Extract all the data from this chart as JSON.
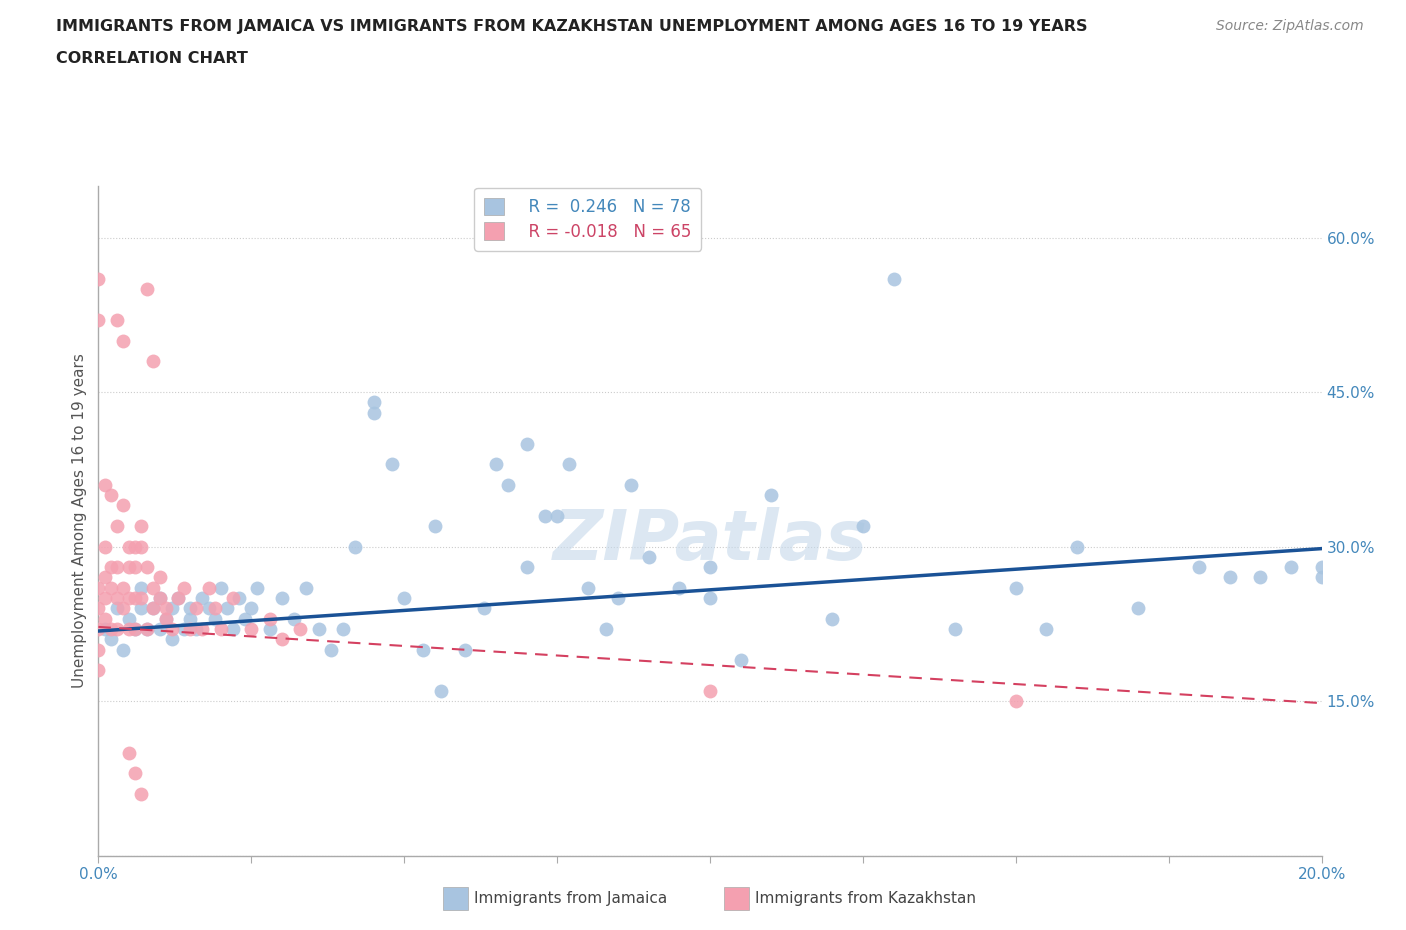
{
  "title_line1": "IMMIGRANTS FROM JAMAICA VS IMMIGRANTS FROM KAZAKHSTAN UNEMPLOYMENT AMONG AGES 16 TO 19 YEARS",
  "title_line2": "CORRELATION CHART",
  "source": "Source: ZipAtlas.com",
  "ylabel": "Unemployment Among Ages 16 to 19 years",
  "xmin": 0.0,
  "xmax": 0.2,
  "ymin": 0.0,
  "ymax": 0.65,
  "yticks": [
    0.0,
    0.15,
    0.3,
    0.45,
    0.6
  ],
  "ytick_labels": [
    "",
    "15.0%",
    "30.0%",
    "45.0%",
    "60.0%"
  ],
  "xticks": [
    0.0,
    0.025,
    0.05,
    0.075,
    0.1,
    0.125,
    0.15,
    0.175,
    0.2
  ],
  "xtick_labels": [
    "0.0%",
    "",
    "",
    "",
    "",
    "",
    "",
    "",
    "20.0%"
  ],
  "jamaica_R": 0.246,
  "jamaica_N": 78,
  "kazakhstan_R": -0.018,
  "kazakhstan_N": 65,
  "jamaica_color": "#a8c4e0",
  "kazakhstan_color": "#f4a0b0",
  "jamaica_line_color": "#1a5296",
  "kazakhstan_line_color": "#d44060",
  "background_color": "#ffffff",
  "grid_color": "#cccccc",
  "watermark": "ZIPatlas",
  "jamaica_line_x0": 0.0,
  "jamaica_line_y0": 0.218,
  "jamaica_line_x1": 0.2,
  "jamaica_line_y1": 0.298,
  "kazakhstan_line_x0": 0.0,
  "kazakhstan_line_y0": 0.222,
  "kazakhstan_line_x1": 0.2,
  "kazakhstan_line_y1": 0.148,
  "jamaica_x": [
    0.001,
    0.002,
    0.003,
    0.004,
    0.005,
    0.006,
    0.007,
    0.007,
    0.008,
    0.009,
    0.01,
    0.01,
    0.011,
    0.012,
    0.012,
    0.013,
    0.014,
    0.015,
    0.015,
    0.016,
    0.017,
    0.018,
    0.019,
    0.02,
    0.021,
    0.022,
    0.023,
    0.024,
    0.025,
    0.026,
    0.028,
    0.03,
    0.032,
    0.034,
    0.036,
    0.038,
    0.04,
    0.042,
    0.045,
    0.048,
    0.05,
    0.053,
    0.056,
    0.06,
    0.063,
    0.067,
    0.07,
    0.073,
    0.077,
    0.08,
    0.083,
    0.087,
    0.09,
    0.095,
    0.1,
    0.105,
    0.11,
    0.12,
    0.13,
    0.14,
    0.15,
    0.155,
    0.16,
    0.17,
    0.18,
    0.185,
    0.19,
    0.195,
    0.2,
    0.2,
    0.07,
    0.085,
    0.1,
    0.045,
    0.055,
    0.065,
    0.075,
    0.125
  ],
  "jamaica_y": [
    0.22,
    0.21,
    0.24,
    0.2,
    0.23,
    0.22,
    0.24,
    0.26,
    0.22,
    0.24,
    0.25,
    0.22,
    0.23,
    0.21,
    0.24,
    0.25,
    0.22,
    0.23,
    0.24,
    0.22,
    0.25,
    0.24,
    0.23,
    0.26,
    0.24,
    0.22,
    0.25,
    0.23,
    0.24,
    0.26,
    0.22,
    0.25,
    0.23,
    0.26,
    0.22,
    0.2,
    0.22,
    0.3,
    0.43,
    0.38,
    0.25,
    0.2,
    0.16,
    0.2,
    0.24,
    0.36,
    0.28,
    0.33,
    0.38,
    0.26,
    0.22,
    0.36,
    0.29,
    0.26,
    0.25,
    0.19,
    0.35,
    0.23,
    0.56,
    0.22,
    0.26,
    0.22,
    0.3,
    0.24,
    0.28,
    0.27,
    0.27,
    0.28,
    0.27,
    0.28,
    0.4,
    0.25,
    0.28,
    0.44,
    0.32,
    0.38,
    0.33,
    0.32
  ],
  "kazakhstan_x": [
    0.0,
    0.0,
    0.0,
    0.0,
    0.0,
    0.001,
    0.001,
    0.001,
    0.001,
    0.002,
    0.002,
    0.002,
    0.003,
    0.003,
    0.003,
    0.004,
    0.004,
    0.005,
    0.005,
    0.005,
    0.006,
    0.006,
    0.006,
    0.007,
    0.007,
    0.008,
    0.008,
    0.009,
    0.009,
    0.01,
    0.01,
    0.011,
    0.011,
    0.012,
    0.013,
    0.014,
    0.015,
    0.016,
    0.017,
    0.018,
    0.019,
    0.02,
    0.022,
    0.025,
    0.028,
    0.03,
    0.033,
    0.003,
    0.004,
    0.008,
    0.009,
    0.0,
    0.0,
    0.001,
    0.002,
    0.003,
    0.004,
    0.005,
    0.006,
    0.007,
    0.1,
    0.15,
    0.005,
    0.006,
    0.007
  ],
  "kazakhstan_y": [
    0.2,
    0.22,
    0.24,
    0.18,
    0.26,
    0.25,
    0.23,
    0.27,
    0.3,
    0.26,
    0.28,
    0.22,
    0.25,
    0.22,
    0.28,
    0.26,
    0.24,
    0.28,
    0.25,
    0.22,
    0.25,
    0.28,
    0.22,
    0.25,
    0.3,
    0.28,
    0.22,
    0.26,
    0.24,
    0.27,
    0.25,
    0.23,
    0.24,
    0.22,
    0.25,
    0.26,
    0.22,
    0.24,
    0.22,
    0.26,
    0.24,
    0.22,
    0.25,
    0.22,
    0.23,
    0.21,
    0.22,
    0.52,
    0.5,
    0.55,
    0.48,
    0.56,
    0.52,
    0.36,
    0.35,
    0.32,
    0.34,
    0.3,
    0.3,
    0.32,
    0.16,
    0.15,
    0.1,
    0.08,
    0.06
  ]
}
